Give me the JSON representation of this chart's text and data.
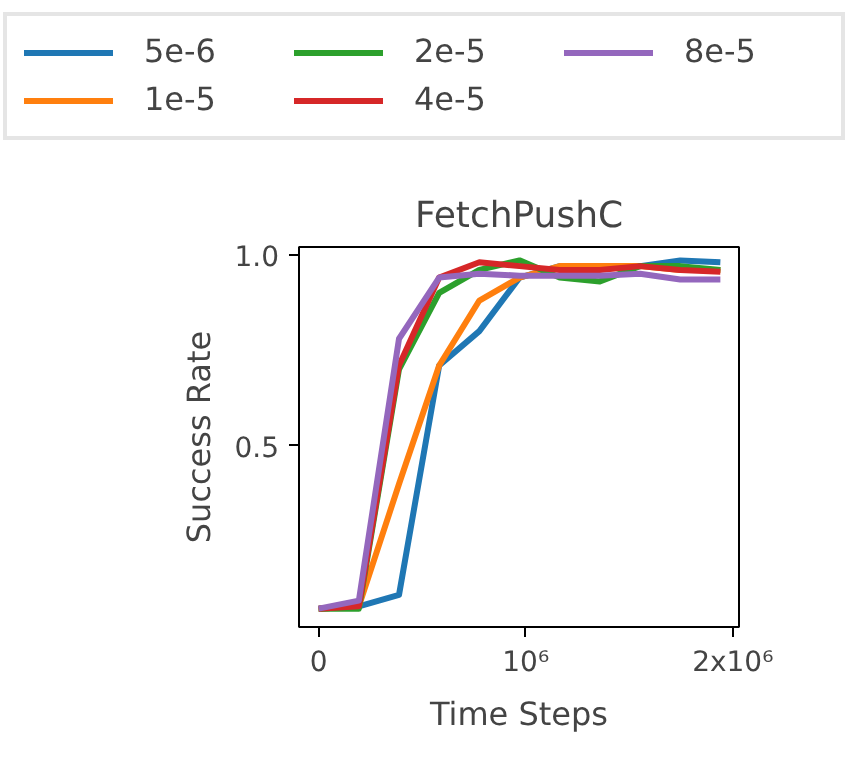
{
  "chart_data": {
    "type": "line",
    "title": "FetchPushC",
    "xlabel": "Time Steps",
    "ylabel": "Success Rate",
    "x": [
      0,
      194000,
      388000,
      582000,
      776000,
      970000,
      1164000,
      1358000,
      1552000,
      1746000,
      1940000
    ],
    "series": [
      {
        "name": "5e-6",
        "color": "#1f77b4",
        "values": [
          0.074,
          0.08,
          0.11,
          0.71,
          0.8,
          0.94,
          0.97,
          0.97,
          0.97,
          0.985,
          0.98
        ]
      },
      {
        "name": "1e-5",
        "color": "#ff7f0e",
        "values": [
          0.074,
          0.08,
          0.4,
          0.71,
          0.88,
          0.94,
          0.97,
          0.97,
          0.97,
          0.96,
          0.96
        ]
      },
      {
        "name": "2e-5",
        "color": "#2ca02c",
        "values": [
          0.074,
          0.074,
          0.7,
          0.9,
          0.96,
          0.985,
          0.94,
          0.93,
          0.97,
          0.97,
          0.96
        ]
      },
      {
        "name": "4e-5",
        "color": "#d62728",
        "values": [
          0.074,
          0.08,
          0.71,
          0.94,
          0.98,
          0.97,
          0.96,
          0.96,
          0.97,
          0.96,
          0.955
        ]
      },
      {
        "name": "8e-5",
        "color": "#9467bd",
        "values": [
          0.074,
          0.095,
          0.78,
          0.94,
          0.95,
          0.945,
          0.945,
          0.945,
          0.95,
          0.935,
          0.935
        ]
      }
    ],
    "xlim": [
      -95000,
      2030000
    ],
    "ylim": [
      0.026,
      1.02
    ],
    "xticks": [
      0,
      {
        "value": 1000000,
        "label": "10⁶"
      },
      {
        "value": 2000000,
        "label": "2x10⁶"
      }
    ],
    "yticks": [
      0.5,
      {
        "value": 1.0,
        "label": "1.0"
      }
    ],
    "grid": false,
    "legend": "top",
    "line_style": "solid",
    "marker": "none"
  }
}
